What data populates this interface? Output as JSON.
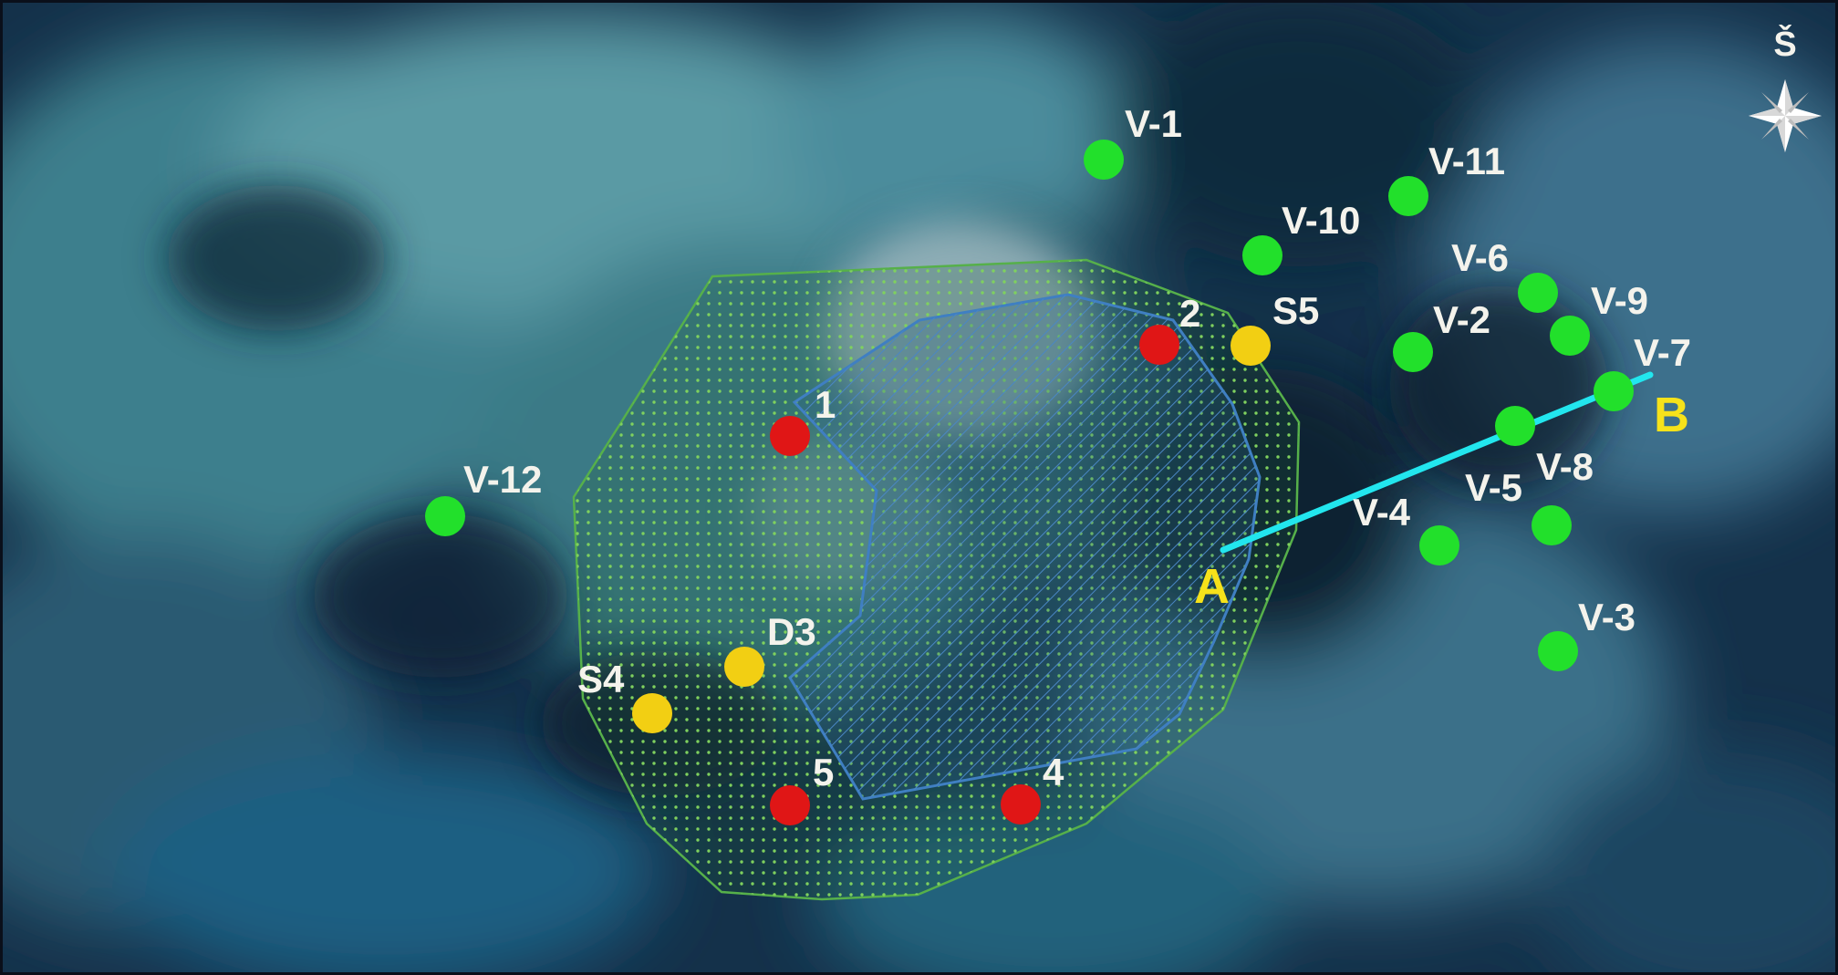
{
  "colors": {
    "well_observation": "#22e02b",
    "well_pumping": "#e01616",
    "well_sample": "#f2cf13",
    "label_white": "#f4f3ec",
    "label_yellow": "#f6e21a",
    "zone_outer": "#56b04a",
    "zone_inner": "#3f7fc2",
    "profile_line": "#22e6ee"
  },
  "north_arrow": {
    "label": "Š",
    "icon": "compass-star-icon"
  },
  "wells": {
    "observation": [
      "V-1",
      "V-2",
      "V-3",
      "V-4",
      "V-5",
      "V-6",
      "V-7",
      "V-8",
      "V-9",
      "V-10",
      "V-11",
      "V-12"
    ],
    "pumping": [
      "1",
      "2",
      "4",
      "5"
    ],
    "sample": [
      "S4",
      "S5",
      "D3"
    ]
  },
  "profile": {
    "start": "A",
    "end": "B"
  },
  "zones": [
    {
      "name": "outer-zone",
      "pattern": "dotted"
    },
    {
      "name": "inner-zone",
      "pattern": "hatched"
    }
  ]
}
